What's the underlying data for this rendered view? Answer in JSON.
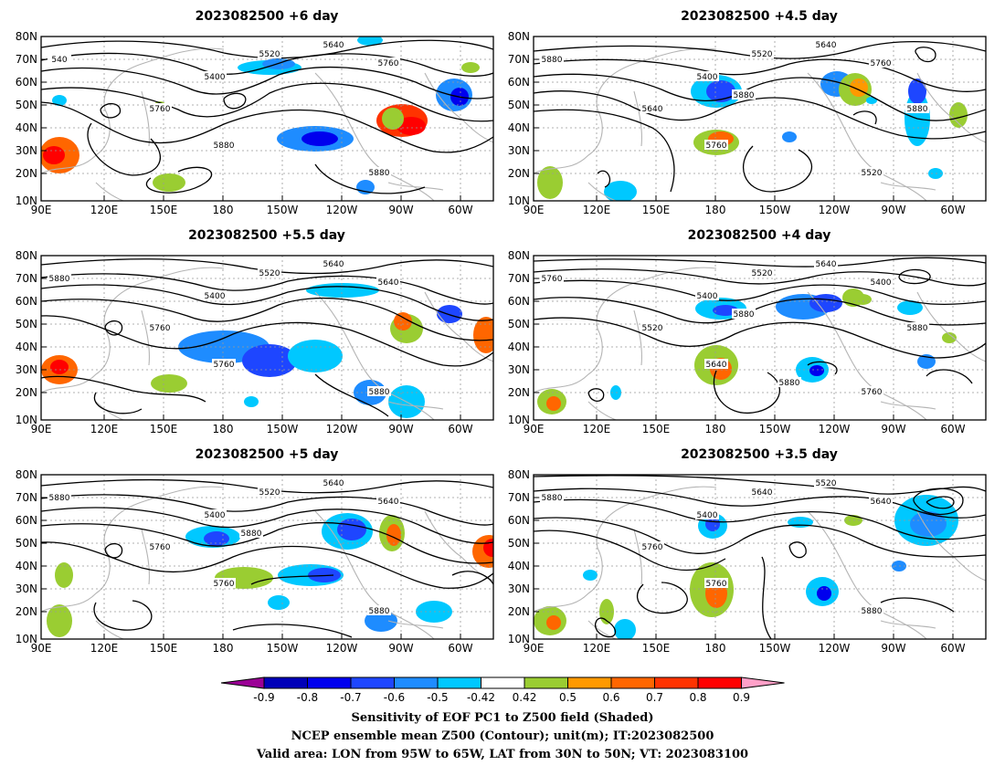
{
  "panels": [
    {
      "title": "2023082500  +6 day",
      "contour_labels": [
        "5400",
        "5520",
        "5640",
        "5760",
        "5760",
        "5880",
        "5880",
        "540"
      ]
    },
    {
      "title": "2023082500  +4.5  day",
      "contour_labels": [
        "5400",
        "5520",
        "5640",
        "5760",
        "5640",
        "5760",
        "5520",
        "5880",
        "5880",
        "5880"
      ]
    },
    {
      "title": "2023082500  +5.5  day",
      "contour_labels": [
        "5400",
        "5520",
        "5640",
        "5640",
        "5760",
        "5760",
        "5880",
        "5880"
      ]
    },
    {
      "title": "2023082500  +4  day",
      "contour_labels": [
        "5400",
        "5520",
        "5640",
        "5400",
        "5520",
        "5640",
        "5760",
        "5760",
        "5880",
        "5880",
        "5880"
      ]
    },
    {
      "title": "2023082500  +5  day",
      "contour_labels": [
        "5400",
        "5520",
        "5640",
        "5640",
        "5760",
        "5760",
        "5880",
        "5880",
        "5880"
      ]
    },
    {
      "title": "2023082500  +3.5  day",
      "contour_labels": [
        "5400",
        "5640",
        "5520",
        "5640",
        "5760",
        "5760",
        "5880",
        "5880"
      ]
    }
  ],
  "axes": {
    "lat_ticks": [
      "80N",
      "70N",
      "60N",
      "50N",
      "40N",
      "30N",
      "20N",
      "10N"
    ],
    "lon_ticks": [
      "90E",
      "120E",
      "150E",
      "180",
      "150W",
      "120W",
      "90W",
      "60W"
    ]
  },
  "colorbar": {
    "tick_labels": [
      "-0.9",
      "-0.8",
      "-0.7",
      "-0.6",
      "-0.5",
      "-0.42",
      "0.42",
      "0.5",
      "0.6",
      "0.7",
      "0.8",
      "0.9"
    ],
    "colors": [
      "#9b0096",
      "#0000b8",
      "#0000ee",
      "#1e46ff",
      "#1e8cff",
      "#00c8ff",
      "#ffffff",
      "#9acd32",
      "#ff9900",
      "#ff6600",
      "#ff3300",
      "#ff0000",
      "#ffa0c8"
    ]
  },
  "caption": {
    "line1": "Sensitivity of EOF PC1 to Z500 field (Shaded)",
    "line2": "NCEP ensemble mean Z500 (Contour); unit(m); IT:2023082500",
    "line3": "Valid area: LON from 95W to 65W, LAT from 30N to 50N; VT: 2023083100"
  }
}
